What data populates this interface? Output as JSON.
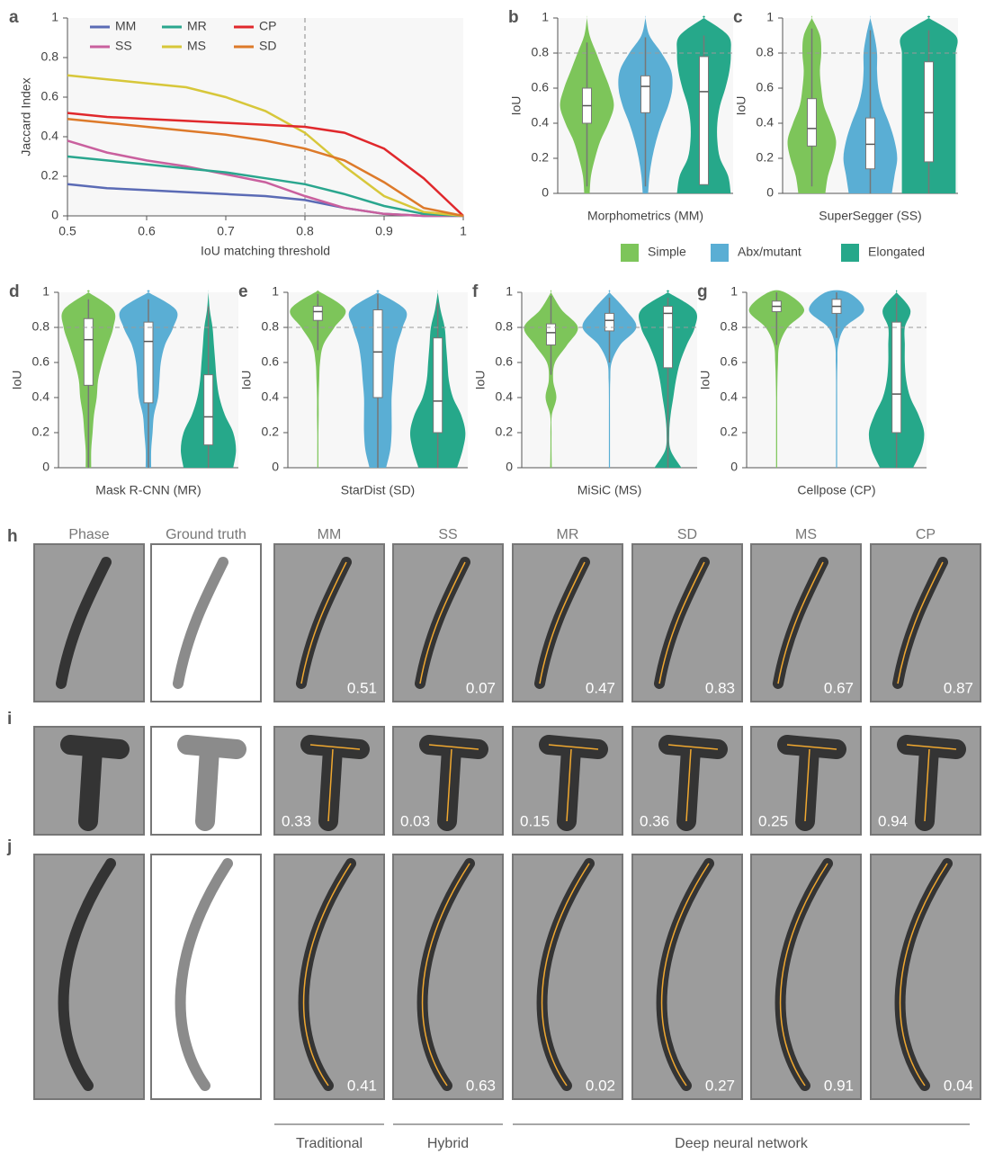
{
  "chart_data": [
    {
      "type": "line",
      "panel_label": "a",
      "x_label": "IoU matching threshold",
      "y_label": "Jaccard Index",
      "x": [
        0.5,
        0.55,
        0.6,
        0.65,
        0.7,
        0.75,
        0.8,
        0.85,
        0.9,
        0.95,
        1
      ],
      "xlim": [
        0.5,
        1
      ],
      "xticks": [
        0.5,
        0.6,
        0.7,
        0.8,
        0.9,
        1
      ],
      "ylim": [
        0,
        1
      ],
      "yticks": [
        0,
        0.2,
        0.4,
        0.6,
        0.8,
        1
      ],
      "threshold": 0.8,
      "series": [
        {
          "name": "MM",
          "color": "#5b6bb5",
          "values": [
            0.16,
            0.14,
            0.13,
            0.12,
            0.11,
            0.1,
            0.08,
            0.04,
            0.01,
            0,
            0
          ]
        },
        {
          "name": "SS",
          "color": "#c9609e",
          "values": [
            0.38,
            0.32,
            0.28,
            0.25,
            0.21,
            0.17,
            0.1,
            0.04,
            0.01,
            0,
            0
          ]
        },
        {
          "name": "MR",
          "color": "#2aa68e",
          "values": [
            0.3,
            0.28,
            0.26,
            0.24,
            0.22,
            0.19,
            0.16,
            0.11,
            0.05,
            0.01,
            0
          ]
        },
        {
          "name": "MS",
          "color": "#d7c73a",
          "values": [
            0.71,
            0.69,
            0.67,
            0.65,
            0.6,
            0.53,
            0.42,
            0.25,
            0.1,
            0.02,
            0
          ]
        },
        {
          "name": "CP",
          "color": "#e0282c",
          "values": [
            0.52,
            0.5,
            0.49,
            0.48,
            0.47,
            0.46,
            0.45,
            0.42,
            0.34,
            0.19,
            0
          ]
        },
        {
          "name": "SD",
          "color": "#dd7a2a",
          "values": [
            0.49,
            0.47,
            0.45,
            0.43,
            0.41,
            0.38,
            0.34,
            0.28,
            0.17,
            0.04,
            0
          ]
        }
      ]
    },
    {
      "type": "violin",
      "panel_label": "b",
      "x_label": "Morphometrics (MM)",
      "y_label": "IoU",
      "ylim": [
        0,
        1
      ],
      "yticks": [
        0,
        0.2,
        0.4,
        0.6,
        0.8,
        1
      ],
      "reference": 0.8,
      "series": [
        {
          "name": "Simple",
          "color": "#7dc55a",
          "box": {
            "min": 0.04,
            "q1": 0.4,
            "median": 0.5,
            "q3": 0.6,
            "max": 0.86
          },
          "density": [
            0.1,
            0.15,
            0.3,
            0.5,
            0.8,
            1,
            0.85,
            0.6,
            0.35,
            0.1,
            0
          ]
        },
        {
          "name": "Abx/mutant",
          "color": "#5aaed4",
          "box": {
            "min": 0.04,
            "q1": 0.46,
            "median": 0.61,
            "q3": 0.67,
            "max": 0.89
          },
          "density": [
            0.1,
            0.15,
            0.25,
            0.4,
            0.6,
            0.85,
            1,
            0.95,
            0.6,
            0.15,
            0
          ]
        },
        {
          "name": "Elongated",
          "color": "#26a88a",
          "box": {
            "min": 0.05,
            "q1": 0.05,
            "median": 0.58,
            "q3": 0.78,
            "max": 0.9
          },
          "density": [
            1,
            0.9,
            0.6,
            0.5,
            0.5,
            0.6,
            0.8,
            0.95,
            1,
            0.9,
            0
          ]
        }
      ]
    },
    {
      "type": "violin",
      "panel_label": "c",
      "x_label": "SuperSegger (SS)",
      "y_label": "IoU",
      "ylim": [
        0,
        1
      ],
      "yticks": [
        0,
        0.2,
        0.4,
        0.6,
        0.8,
        1
      ],
      "reference": 0.8,
      "series": [
        {
          "name": "Simple",
          "color": "#7dc55a",
          "box": {
            "min": 0.04,
            "q1": 0.27,
            "median": 0.37,
            "q3": 0.54,
            "max": 0.94
          },
          "density": [
            0.5,
            0.6,
            0.8,
            0.9,
            0.7,
            0.45,
            0.35,
            0.3,
            0.35,
            0.3,
            0
          ]
        },
        {
          "name": "Abx/mutant",
          "color": "#5aaed4",
          "box": {
            "min": 0,
            "q1": 0.14,
            "median": 0.28,
            "q3": 0.43,
            "max": 0.93
          },
          "density": [
            0.8,
            0.9,
            1,
            0.9,
            0.7,
            0.45,
            0.3,
            0.25,
            0.25,
            0.15,
            0
          ]
        },
        {
          "name": "Elongated",
          "color": "#26a88a",
          "box": {
            "min": 0,
            "q1": 0.18,
            "median": 0.46,
            "q3": 0.75,
            "max": 0.93
          },
          "density": [
            1,
            1,
            1,
            1,
            1,
            1,
            1,
            1,
            1,
            1,
            0
          ]
        }
      ]
    },
    {
      "type": "violin",
      "panel_label": "d",
      "x_label": "Mask R-CNN (MR)",
      "y_label": "IoU",
      "ylim": [
        0,
        1
      ],
      "yticks": [
        0,
        0.2,
        0.4,
        0.6,
        0.8,
        1
      ],
      "reference": 0.8,
      "series": [
        {
          "name": "Simple",
          "color": "#7dc55a",
          "box": {
            "min": 0,
            "q1": 0.47,
            "median": 0.73,
            "q3": 0.85,
            "max": 0.96
          },
          "density": [
            0.1,
            0.1,
            0.15,
            0.2,
            0.3,
            0.35,
            0.5,
            0.7,
            0.9,
            0.9,
            0
          ]
        },
        {
          "name": "Abx/mutant",
          "color": "#5aaed4",
          "box": {
            "min": 0,
            "q1": 0.37,
            "median": 0.72,
            "q3": 0.83,
            "max": 0.96
          },
          "density": [
            0.1,
            0.1,
            0.15,
            0.2,
            0.35,
            0.4,
            0.45,
            0.6,
            0.9,
            1,
            0
          ]
        },
        {
          "name": "Elongated",
          "color": "#26a88a",
          "box": {
            "min": 0,
            "q1": 0.13,
            "median": 0.29,
            "q3": 0.53,
            "max": 0.92
          },
          "density": [
            0.9,
            1,
            0.9,
            0.6,
            0.4,
            0.3,
            0.25,
            0.2,
            0.15,
            0.05,
            0
          ]
        }
      ]
    },
    {
      "type": "violin",
      "panel_label": "e",
      "x_label": "StarDist (SD)",
      "y_label": "IoU",
      "ylim": [
        0,
        1
      ],
      "yticks": [
        0,
        0.2,
        0.4,
        0.6,
        0.8,
        1
      ],
      "reference": 0.8,
      "series": [
        {
          "name": "Simple",
          "color": "#7dc55a",
          "box": {
            "min": 0.67,
            "q1": 0.84,
            "median": 0.89,
            "q3": 0.92,
            "max": 0.99
          },
          "density": [
            0.02,
            0.02,
            0.02,
            0.03,
            0.03,
            0.05,
            0.08,
            0.2,
            0.6,
            1,
            0.1
          ]
        },
        {
          "name": "Abx/mutant",
          "color": "#5aaed4",
          "box": {
            "min": 0,
            "q1": 0.4,
            "median": 0.66,
            "q3": 0.9,
            "max": 0.99
          },
          "density": [
            0.3,
            0.45,
            0.5,
            0.5,
            0.5,
            0.55,
            0.6,
            0.7,
            0.9,
            1,
            0
          ]
        },
        {
          "name": "Elongated",
          "color": "#26a88a",
          "box": {
            "min": 0,
            "q1": 0.2,
            "median": 0.38,
            "q3": 0.74,
            "max": 0.94
          },
          "density": [
            0.7,
            0.9,
            1,
            0.85,
            0.55,
            0.4,
            0.35,
            0.3,
            0.25,
            0.1,
            0
          ]
        }
      ]
    },
    {
      "type": "violin",
      "panel_label": "f",
      "x_label": "MiSiC (MS)",
      "y_label": "IoU",
      "ylim": [
        0,
        1
      ],
      "yticks": [
        0,
        0.2,
        0.4,
        0.6,
        0.8,
        1
      ],
      "reference": 0.8,
      "series": [
        {
          "name": "Simple",
          "color": "#7dc55a",
          "box": {
            "min": 0.53,
            "q1": 0.7,
            "median": 0.77,
            "q3": 0.82,
            "max": 0.98
          },
          "density": [
            0.03,
            0.02,
            0.02,
            0.03,
            0.2,
            0.08,
            0.15,
            0.6,
            1,
            0.4,
            0
          ]
        },
        {
          "name": "Abx/mutant",
          "color": "#5aaed4",
          "box": {
            "min": 0.6,
            "q1": 0.78,
            "median": 0.84,
            "q3": 0.88,
            "max": 0.97
          },
          "density": [
            0.02,
            0.02,
            0.02,
            0.02,
            0.02,
            0.03,
            0.08,
            0.4,
            1,
            0.6,
            0
          ]
        },
        {
          "name": "Elongated",
          "color": "#26a88a",
          "box": {
            "min": 0,
            "q1": 0.57,
            "median": 0.88,
            "q3": 0.92,
            "max": 0.97
          },
          "density": [
            0.5,
            0.1,
            0.05,
            0.1,
            0.2,
            0.3,
            0.45,
            0.7,
            1,
            1,
            0
          ]
        }
      ]
    },
    {
      "type": "violin",
      "panel_label": "g",
      "x_label": "Cellpose (CP)",
      "y_label": "IoU",
      "ylim": [
        0,
        1
      ],
      "yticks": [
        0,
        0.2,
        0.4,
        0.6,
        0.8,
        1
      ],
      "reference": 0.8,
      "series": [
        {
          "name": "Simple",
          "color": "#7dc55a",
          "box": {
            "min": 0.7,
            "q1": 0.89,
            "median": 0.92,
            "q3": 0.95,
            "max": 1
          },
          "density": [
            0.02,
            0.02,
            0.02,
            0.02,
            0.02,
            0.03,
            0.05,
            0.1,
            0.4,
            1,
            0.3
          ]
        },
        {
          "name": "Abx/mutant",
          "color": "#5aaed4",
          "box": {
            "min": 0.74,
            "q1": 0.88,
            "median": 0.92,
            "q3": 0.96,
            "max": 1
          },
          "density": [
            0.02,
            0.02,
            0.02,
            0.02,
            0.02,
            0.02,
            0.03,
            0.06,
            0.3,
            1,
            0.4
          ]
        },
        {
          "name": "Elongated",
          "color": "#26a88a",
          "box": {
            "min": 0,
            "q1": 0.2,
            "median": 0.42,
            "q3": 0.83,
            "max": 0.97
          },
          "density": [
            0.6,
            0.9,
            1,
            0.8,
            0.5,
            0.35,
            0.3,
            0.3,
            0.3,
            0.5,
            0
          ]
        }
      ]
    }
  ],
  "violin_density_y": [
    0,
    0.1,
    0.2,
    0.3,
    0.4,
    0.5,
    0.6,
    0.7,
    0.8,
    0.9,
    1
  ],
  "segmentation": {
    "columns": [
      "Phase",
      "Ground truth",
      "MM",
      "SS",
      "MR",
      "SD",
      "MS",
      "CP"
    ],
    "rows": [
      {
        "label": "h",
        "scores": [
          0.51,
          0.07,
          0.47,
          0.83,
          0.67,
          0.87
        ]
      },
      {
        "label": "i",
        "scores": [
          0.33,
          0.03,
          0.15,
          0.36,
          0.25,
          0.94
        ]
      },
      {
        "label": "j",
        "scores": [
          0.41,
          0.63,
          0.02,
          0.27,
          0.91,
          0.04
        ]
      }
    ],
    "groups": [
      "Traditional",
      "Hybrid",
      "Deep neural network"
    ]
  }
}
